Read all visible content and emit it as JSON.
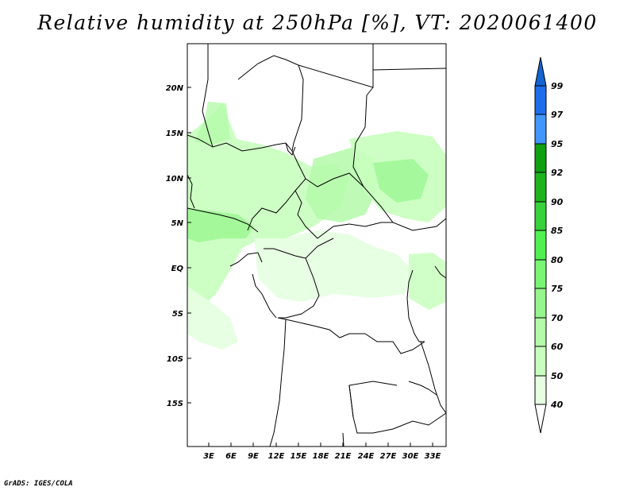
{
  "title": "Relative humidity at 250hPa [%], VT: 2020061400",
  "credit": "GrADS: IGES/COLA",
  "map": {
    "lat_labels": [
      "20N",
      "15N",
      "10N",
      "5N",
      "EQ",
      "5S",
      "10S",
      "15S"
    ],
    "lon_labels": [
      "3E",
      "6E",
      "9E",
      "12E",
      "15E",
      "18E",
      "21E",
      "24E",
      "27E",
      "30E",
      "33E"
    ]
  },
  "colorbar": {
    "labels": [
      "99",
      "97",
      "95",
      "92",
      "90",
      "85",
      "80",
      "75",
      "70",
      "60",
      "50",
      "40"
    ],
    "colors": [
      "#1464d2",
      "#1e6eeb",
      "#4196ff",
      "#0fa00f",
      "#1eb41e",
      "#37d23c",
      "#50f050",
      "#78f573",
      "#96f58c",
      "#b4faaa",
      "#c8ffbe",
      "#e6ffe1"
    ]
  }
}
